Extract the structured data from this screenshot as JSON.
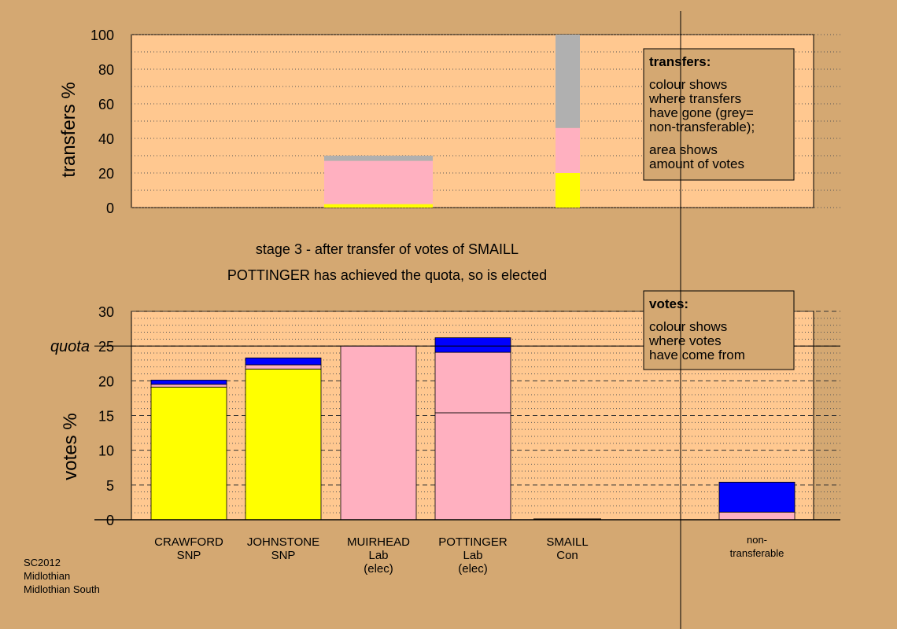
{
  "colors": {
    "background": "#d4a872",
    "plot_background": "#ffc890",
    "snp": "#ffff00",
    "lab": "#ffb0c0",
    "con": "#0000ff",
    "non_transferable": "#b0b0b0",
    "legend_box": "#d4a872"
  },
  "top_chart": {
    "ylabel": "transfers %",
    "ylim": [
      0,
      100
    ],
    "ticks": [
      "0",
      "20",
      "40",
      "60",
      "80",
      "100"
    ],
    "legend": {
      "title": "transfers:",
      "lines1": [
        "colour shows",
        "where transfers",
        "have gone (grey=",
        "non-transferable);"
      ],
      "lines2": [
        "area shows",
        "amount of votes"
      ]
    }
  },
  "caption": {
    "line1": "stage 3 - after transfer of votes of SMAILL",
    "line2": "POTTINGER has achieved the quota, so is elected"
  },
  "bottom_chart": {
    "ylabel": "votes %",
    "ylim": [
      0,
      30
    ],
    "ticks": [
      "0",
      "5",
      "10",
      "15",
      "20",
      "25",
      "30"
    ],
    "quota_label": "quota",
    "quota": 25,
    "legend": {
      "title": "votes:",
      "lines": [
        "colour shows",
        "where votes",
        "have come from"
      ]
    }
  },
  "candidates": [
    {
      "name": "CRAWFORD",
      "party": "SNP",
      "status": ""
    },
    {
      "name": "JOHNSTONE",
      "party": "SNP",
      "status": ""
    },
    {
      "name": "MUIRHEAD",
      "party": "Lab",
      "status": "(elec)"
    },
    {
      "name": "POTTINGER",
      "party": "Lab",
      "status": "(elec)"
    },
    {
      "name": "SMAILL",
      "party": "Con",
      "status": ""
    },
    {
      "name": "non-",
      "party": "transferable",
      "status": ""
    }
  ],
  "footer": {
    "line1": "SC2012",
    "line2": "Midlothian",
    "line3": "Midlothian South"
  },
  "chart_data": [
    {
      "type": "bar",
      "title": "",
      "ylabel": "transfers %",
      "ylim": [
        0,
        100
      ],
      "note": "stacked transfer bars by destination party",
      "bars": [
        {
          "x_range": [
            "JOHNSTONE",
            "POTTINGER"
          ],
          "segments": [
            {
              "color": "snp",
              "value": 2
            },
            {
              "color": "lab",
              "value": 25
            },
            {
              "color": "non_transferable",
              "value": 3
            }
          ]
        },
        {
          "x_range": [
            "SMAILL",
            "SMAILL"
          ],
          "segments": [
            {
              "color": "snp",
              "value": 20
            },
            {
              "color": "lab",
              "value": 26
            },
            {
              "color": "non_transferable",
              "value": 54
            }
          ]
        }
      ]
    },
    {
      "type": "bar",
      "title": "",
      "ylabel": "votes %",
      "ylim": [
        0,
        30
      ],
      "categories": [
        "CRAWFORD SNP",
        "JOHNSTONE SNP",
        "MUIRHEAD Lab (elec)",
        "POTTINGER Lab (elec)",
        "SMAILL Con",
        "non-transferable"
      ],
      "stacks": [
        [
          {
            "color": "snp",
            "value": 19.1
          },
          {
            "color": "lab",
            "value": 0.4
          },
          {
            "color": "con",
            "value": 0.6
          }
        ],
        [
          {
            "color": "snp",
            "value": 21.7
          },
          {
            "color": "lab",
            "value": 0.6
          },
          {
            "color": "con",
            "value": 1.0
          }
        ],
        [
          {
            "color": "lab",
            "value": 25.0
          }
        ],
        [
          {
            "color": "lab",
            "value": 15.4
          },
          {
            "color": "lab",
            "value": 8.7
          },
          {
            "color": "con",
            "value": 2.1
          }
        ],
        [],
        [
          {
            "color": "lab",
            "value": 1.1
          },
          {
            "color": "con",
            "value": 4.3
          }
        ]
      ],
      "quota": 25
    }
  ]
}
